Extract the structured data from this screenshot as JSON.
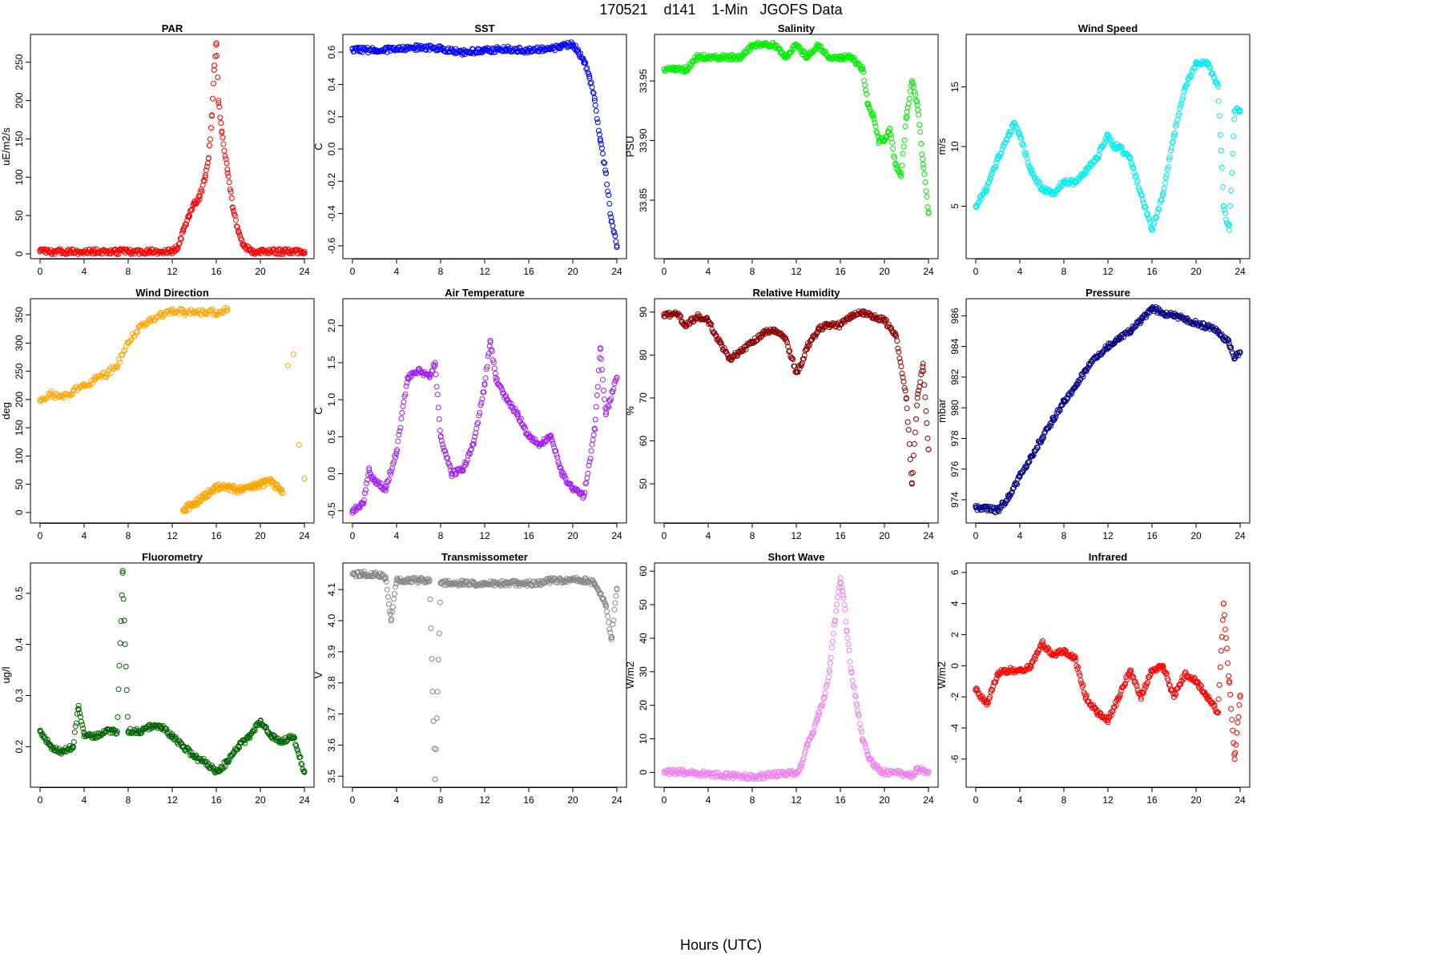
{
  "page": {
    "title": "170521    d141    1-Min   JGOFS Data",
    "xlabel": "Hours (UTC)"
  },
  "x_ticks": [
    "0",
    "4",
    "8",
    "12",
    "16",
    "20",
    "24"
  ],
  "chart_data": [
    {
      "type": "scatter",
      "title": "PAR",
      "ylabel": "uE/m2/s",
      "color": "#ff0000",
      "xlim": [
        0,
        24
      ],
      "ylim": [
        0,
        280
      ],
      "y_ticks": [
        "0",
        "50",
        "100",
        "150",
        "200",
        "250"
      ],
      "y_tick_values": [
        0,
        50,
        100,
        150,
        200,
        250
      ],
      "x": [
        0,
        2,
        4,
        6,
        8,
        10,
        12,
        12.5,
        13,
        13.5,
        14,
        14.5,
        15,
        15.3,
        15.6,
        15.8,
        16,
        16.2,
        16.5,
        17,
        17.5,
        18,
        18.5,
        19,
        19.5,
        20,
        22,
        24
      ],
      "y": [
        3,
        3,
        3,
        3,
        3,
        3,
        3,
        8,
        30,
        50,
        65,
        75,
        100,
        125,
        180,
        240,
        275,
        200,
        160,
        110,
        60,
        30,
        10,
        5,
        3,
        3,
        3,
        3
      ]
    },
    {
      "type": "scatter",
      "title": "SST",
      "ylabel": "C",
      "color": "#0000ff",
      "xlim": [
        0,
        24
      ],
      "ylim": [
        -0.65,
        0.68
      ],
      "y_ticks": [
        "-0.6",
        "-0.4",
        "-0.2",
        "0.0",
        "0.2",
        "0.4",
        "0.6"
      ],
      "y_tick_values": [
        -0.6,
        -0.4,
        -0.2,
        0,
        0.2,
        0.4,
        0.6
      ],
      "x": [
        0,
        2,
        4,
        6,
        8,
        10,
        12,
        14,
        16,
        18,
        19,
        20,
        20.5,
        21,
        21.5,
        22,
        22.5,
        23,
        23.5,
        24
      ],
      "y": [
        0.62,
        0.61,
        0.62,
        0.63,
        0.62,
        0.6,
        0.61,
        0.62,
        0.61,
        0.62,
        0.64,
        0.65,
        0.6,
        0.55,
        0.45,
        0.3,
        0.05,
        -0.15,
        -0.45,
        -0.6
      ]
    },
    {
      "type": "scatter",
      "title": "Salinity",
      "ylabel": "PSU",
      "color": "#00ee00",
      "xlim": [
        0,
        24
      ],
      "ylim": [
        33.805,
        33.985
      ],
      "y_ticks": [
        "33.85",
        "33.90",
        "33.95"
      ],
      "y_tick_values": [
        33.85,
        33.9,
        33.95
      ],
      "x": [
        0,
        1,
        2,
        3,
        4,
        5,
        6,
        7,
        8,
        9,
        10,
        11,
        12,
        13,
        14,
        15,
        16,
        17,
        18,
        18.5,
        19,
        19.5,
        20,
        20.5,
        21,
        21.5,
        22,
        22.5,
        23,
        23.5,
        24
      ],
      "y": [
        33.96,
        33.96,
        33.96,
        33.97,
        33.97,
        33.97,
        33.97,
        33.97,
        33.98,
        33.98,
        33.98,
        33.97,
        33.98,
        33.97,
        33.98,
        33.97,
        33.97,
        33.97,
        33.96,
        33.93,
        33.92,
        33.9,
        33.9,
        33.91,
        33.88,
        33.87,
        33.92,
        33.95,
        33.93,
        33.88,
        33.84
      ]
    },
    {
      "type": "scatter",
      "title": "Wind Speed",
      "ylabel": "m/s",
      "color": "#00eeee",
      "xlim": [
        0,
        24
      ],
      "ylim": [
        1,
        19
      ],
      "y_ticks": [
        "5",
        "10",
        "15"
      ],
      "y_tick_values": [
        5,
        10,
        15
      ],
      "x": [
        0,
        1,
        2,
        3,
        3.5,
        4,
        5,
        6,
        7,
        8,
        9,
        10,
        11,
        12,
        12.5,
        13,
        14,
        15,
        16,
        17,
        18,
        19,
        20,
        21,
        22,
        22.5,
        23,
        23.5,
        24
      ],
      "y": [
        5,
        6.5,
        9,
        11,
        12,
        11,
        8,
        6.5,
        6,
        7,
        7,
        8,
        9,
        11,
        10,
        10,
        9,
        6,
        3,
        6,
        11,
        15,
        17,
        17,
        15,
        5,
        3,
        13,
        13
      ]
    },
    {
      "type": "scatter",
      "title": "Wind Direction",
      "ylabel": "deg",
      "color": "#ffa500",
      "xlim": [
        0,
        24
      ],
      "ylim": [
        -10,
        370
      ],
      "y_ticks": [
        "0",
        "50",
        "100",
        "150",
        "200",
        "250",
        "300",
        "350"
      ],
      "y_tick_values": [
        0,
        50,
        100,
        150,
        200,
        250,
        300,
        350
      ],
      "x": [
        0,
        1,
        2,
        3,
        4,
        5,
        6,
        7,
        8,
        9,
        10,
        11,
        12,
        13,
        14,
        15,
        16,
        17,
        13,
        14,
        15,
        16,
        17,
        18,
        19,
        20,
        21,
        22,
        22.5,
        23,
        23.5,
        24
      ],
      "y": [
        200,
        210,
        205,
        215,
        225,
        235,
        245,
        260,
        300,
        330,
        340,
        350,
        355,
        355,
        355,
        355,
        355,
        358,
        5,
        15,
        30,
        45,
        45,
        40,
        45,
        50,
        55,
        35,
        260,
        280,
        120,
        60
      ]
    },
    {
      "type": "scatter",
      "title": "Air Temperature",
      "ylabel": "C",
      "color": "#a020f0",
      "xlim": [
        0,
        24
      ],
      "ylim": [
        -0.6,
        2.3
      ],
      "y_ticks": [
        "-0.5",
        "0.0",
        "0.5",
        "1.0",
        "1.5",
        "2.0"
      ],
      "y_tick_values": [
        -0.5,
        0,
        0.5,
        1,
        1.5,
        2
      ],
      "x": [
        0,
        1,
        1.5,
        2,
        3,
        4,
        5,
        6,
        7,
        7.5,
        8,
        9,
        10,
        11,
        12,
        12.5,
        13,
        14,
        15,
        16,
        17,
        18,
        19,
        20,
        21,
        22,
        22.5,
        23,
        24
      ],
      "y": [
        -0.5,
        -0.4,
        0.05,
        -0.1,
        -0.2,
        0.3,
        1.3,
        1.4,
        1.3,
        1.5,
        0.5,
        0,
        0.05,
        0.4,
        1.2,
        1.8,
        1.3,
        1,
        0.8,
        0.5,
        0.4,
        0.5,
        0,
        -0.2,
        -0.3,
        0.6,
        1.7,
        0.8,
        1.3
      ]
    },
    {
      "type": "scatter",
      "title": "Relative Humidity",
      "ylabel": "%",
      "color": "#8b0000",
      "xlim": [
        0,
        24
      ],
      "ylim": [
        42,
        92
      ],
      "y_ticks": [
        "50",
        "60",
        "70",
        "80",
        "90"
      ],
      "y_tick_values": [
        50,
        60,
        70,
        80,
        90
      ],
      "x": [
        0,
        1,
        2,
        3,
        4,
        5,
        6,
        7,
        8,
        9,
        10,
        11,
        12,
        12.5,
        13,
        14,
        15,
        16,
        17,
        18,
        19,
        20,
        21,
        22,
        22.5,
        23,
        23.5,
        24
      ],
      "y": [
        89,
        90,
        87,
        89,
        88,
        83,
        79,
        81,
        83,
        85,
        86,
        84,
        76,
        78,
        82,
        86,
        87,
        87,
        89,
        90,
        89,
        88,
        85,
        70,
        50,
        70,
        78,
        58
      ]
    },
    {
      "type": "scatter",
      "title": "Pressure",
      "ylabel": "mbar",
      "color": "#000080",
      "xlim": [
        0,
        24
      ],
      "ylim": [
        972.8,
        986.8
      ],
      "y_ticks": [
        "974",
        "976",
        "978",
        "980",
        "982",
        "984",
        "986"
      ],
      "y_tick_values": [
        974,
        976,
        978,
        980,
        982,
        984,
        986
      ],
      "x": [
        0,
        1,
        2,
        3,
        4,
        5,
        6,
        7,
        8,
        9,
        10,
        11,
        12,
        13,
        14,
        15,
        16,
        17,
        18,
        19,
        20,
        21,
        22,
        23,
        23.5,
        24
      ],
      "y": [
        973.5,
        973.4,
        973.3,
        974.2,
        975.5,
        976.8,
        978,
        979.2,
        980.4,
        981.3,
        982.5,
        983.3,
        984,
        984.5,
        985,
        985.7,
        986.5,
        986.2,
        986,
        985.8,
        985.5,
        985.3,
        985,
        984.2,
        983.2,
        983.6
      ]
    },
    {
      "type": "scatter",
      "title": "Fluorometry",
      "ylabel": "ug/l",
      "color": "#006400",
      "xlim": [
        0,
        24
      ],
      "ylim": [
        0.13,
        0.55
      ],
      "y_ticks": [
        "0.2",
        "0.3",
        "0.4",
        "0.5"
      ],
      "y_tick_values": [
        0.2,
        0.3,
        0.4,
        0.5
      ],
      "x": [
        0,
        1,
        2,
        3,
        3.5,
        4,
        5,
        6,
        7,
        7.5,
        8,
        9,
        10,
        11,
        12,
        13,
        14,
        15,
        16,
        17,
        18,
        19,
        20,
        21,
        22,
        23,
        24
      ],
      "y": [
        0.23,
        0.2,
        0.19,
        0.2,
        0.28,
        0.22,
        0.22,
        0.23,
        0.23,
        0.54,
        0.23,
        0.23,
        0.24,
        0.24,
        0.22,
        0.2,
        0.18,
        0.17,
        0.15,
        0.17,
        0.2,
        0.22,
        0.25,
        0.22,
        0.21,
        0.22,
        0.15
      ]
    },
    {
      "type": "scatter",
      "title": "Transmissometer",
      "ylabel": "V",
      "color": "#888888",
      "xlim": [
        0,
        24
      ],
      "ylim": [
        3.48,
        4.17
      ],
      "y_ticks": [
        "3.5",
        "3.6",
        "3.7",
        "3.8",
        "3.9",
        "4.0",
        "4.1"
      ],
      "y_tick_values": [
        3.5,
        3.6,
        3.7,
        3.8,
        3.9,
        4.0,
        4.1
      ],
      "x": [
        0,
        1,
        2,
        3,
        3.5,
        4,
        5,
        6,
        7,
        7.5,
        8,
        9,
        10,
        11,
        12,
        13,
        14,
        15,
        16,
        17,
        18,
        19,
        20,
        21,
        22,
        23,
        23.5,
        24
      ],
      "y": [
        4.15,
        4.15,
        4.15,
        4.14,
        4.0,
        4.13,
        4.13,
        4.13,
        4.13,
        3.49,
        4.12,
        4.12,
        4.12,
        4.12,
        4.12,
        4.12,
        4.12,
        4.12,
        4.12,
        4.12,
        4.13,
        4.13,
        4.13,
        4.13,
        4.12,
        4.05,
        3.94,
        4.1
      ]
    },
    {
      "type": "scatter",
      "title": "Short Wave",
      "ylabel": "W/m2",
      "color": "#ee82ee",
      "xlim": [
        0,
        24
      ],
      "ylim": [
        -3,
        61
      ],
      "y_ticks": [
        "0",
        "10",
        "20",
        "30",
        "40",
        "50",
        "60"
      ],
      "y_tick_values": [
        0,
        10,
        20,
        30,
        40,
        50,
        60
      ],
      "x": [
        0,
        2,
        4,
        6,
        8,
        10,
        12,
        12.5,
        13,
        13.5,
        14,
        14.5,
        15,
        15.5,
        16,
        16.3,
        16.6,
        17,
        17.5,
        18,
        18.5,
        19,
        19.5,
        20,
        22,
        22.5,
        23,
        24
      ],
      "y": [
        0,
        0,
        -0.5,
        -1,
        -1.5,
        -0.5,
        0,
        2,
        8,
        12,
        17,
        22,
        30,
        45,
        58,
        52,
        42,
        30,
        20,
        10,
        5,
        2,
        1,
        0,
        -0.5,
        -1,
        1,
        0
      ]
    },
    {
      "type": "scatter",
      "title": "Infrared",
      "ylabel": "W/m2",
      "color": "#ff0000",
      "xlim": [
        0,
        24
      ],
      "ylim": [
        -7.5,
        6.3
      ],
      "y_ticks": [
        "-6",
        "-4",
        "-2",
        "0",
        "2",
        "4",
        "6"
      ],
      "y_tick_values": [
        -6,
        -4,
        -2,
        0,
        2,
        4,
        6
      ],
      "x": [
        0,
        1,
        2,
        3,
        4,
        5,
        6,
        7,
        8,
        9,
        10,
        11,
        12,
        13,
        14,
        15,
        16,
        17,
        18,
        19,
        20,
        21,
        22,
        22.5,
        23,
        23.5,
        24
      ],
      "y": [
        -1.5,
        -2.5,
        -0.5,
        -0.3,
        -0.3,
        0,
        1.5,
        0.7,
        1,
        0.5,
        -2,
        -3,
        -3.5,
        -2,
        -0.3,
        -2,
        -0.3,
        0,
        -2,
        -0.5,
        -1,
        -2,
        -3,
        4,
        -1,
        -6,
        -2
      ]
    }
  ]
}
